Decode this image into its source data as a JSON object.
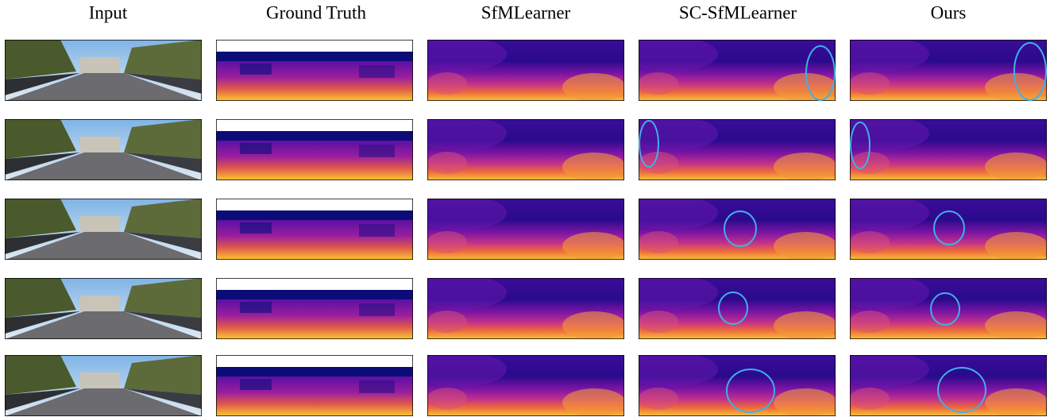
{
  "header": {
    "columns": [
      "Input",
      "Ground Truth",
      "SfMLearner",
      "SC-SfMLearner",
      "Ours"
    ]
  }
}
